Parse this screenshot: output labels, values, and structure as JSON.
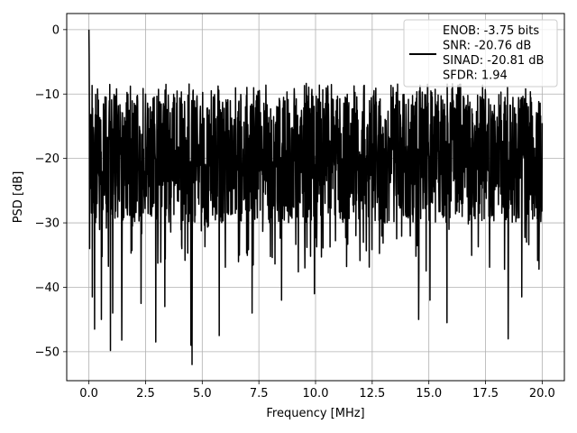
{
  "chart_data": {
    "type": "line",
    "xlabel": "Frequency [MHz]",
    "ylabel": "PSD [dB]",
    "xlim": [
      -0.98,
      20.98
    ],
    "ylim": [
      -54.5,
      2.5
    ],
    "xticks": [
      0.0,
      2.5,
      5.0,
      7.5,
      10.0,
      12.5,
      15.0,
      17.5,
      20.0
    ],
    "xtick_labels": [
      "0.0",
      "2.5",
      "5.0",
      "7.5",
      "10.0",
      "12.5",
      "15.0",
      "17.5",
      "20.0"
    ],
    "yticks": [
      0,
      -10,
      -20,
      -30,
      -40,
      -50
    ],
    "ytick_labels": [
      "0",
      "−10",
      "−20",
      "−30",
      "−40",
      "−50"
    ],
    "grid": true,
    "legend": {
      "placement": "top-right",
      "lines": [
        "ENOB: -3.75 bits",
        "SNR: -20.76 dB",
        "SINAD: -20.81 dB",
        "SFDR: 1.94"
      ]
    },
    "series": [
      {
        "color": "#000000",
        "x_start": 0.0,
        "x_end": 20.0,
        "n_points": 2000,
        "dc_peak_db": 0.0,
        "noise_floor_center_db": -20.8,
        "typical_range_db": [
          -30,
          -10
        ],
        "peak_max_db": -8.3,
        "dips": [
          {
            "x": 4.55,
            "y": -52.0
          },
          {
            "x": 4.5,
            "y": -49.0
          },
          {
            "x": 0.95,
            "y": -49.8
          },
          {
            "x": 1.45,
            "y": -48.2
          },
          {
            "x": 2.95,
            "y": -48.5
          },
          {
            "x": 5.75,
            "y": -47.5
          },
          {
            "x": 0.25,
            "y": -46.5
          },
          {
            "x": 18.5,
            "y": -48.0
          },
          {
            "x": 14.55,
            "y": -45.0
          },
          {
            "x": 15.8,
            "y": -45.5
          },
          {
            "x": 0.55,
            "y": -45.0
          },
          {
            "x": 1.05,
            "y": -44.0
          },
          {
            "x": 7.2,
            "y": -44.0
          },
          {
            "x": 3.35,
            "y": -43.0
          },
          {
            "x": 8.5,
            "y": -42.0
          },
          {
            "x": 15.05,
            "y": -42.0
          },
          {
            "x": 2.3,
            "y": -42.5
          },
          {
            "x": 19.1,
            "y": -41.5
          },
          {
            "x": 0.15,
            "y": -41.5
          },
          {
            "x": 9.95,
            "y": -41.0
          }
        ]
      }
    ]
  }
}
